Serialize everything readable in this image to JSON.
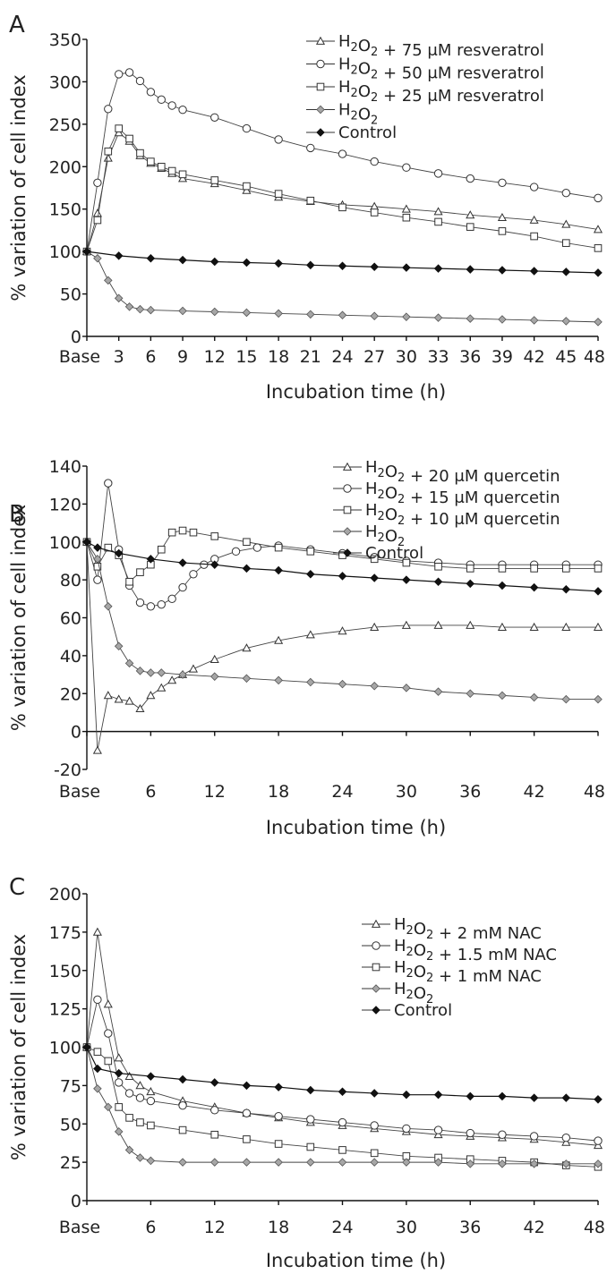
{
  "chart_data": [
    {
      "panel": "A",
      "type": "line",
      "xlabel": "Incubation time (h)",
      "ylabel": "% variation of cell index",
      "ylim": [
        0,
        350
      ],
      "yticks": [
        "0",
        "50",
        "100",
        "150",
        "200",
        "250",
        "300",
        "350"
      ],
      "xlim": [
        0,
        48
      ],
      "xticks": [
        "Base",
        "3",
        "6",
        "9",
        "12",
        "15",
        "18",
        "21",
        "24",
        "27",
        "30",
        "33",
        "36",
        "39",
        "42",
        "45",
        "48"
      ],
      "legend_position": "top-right",
      "series": [
        {
          "name": "H₂O₂ + 75 μM resveratrol",
          "marker": "triangle",
          "x": [
            0,
            1,
            2,
            3,
            4,
            5,
            6,
            7,
            8,
            9,
            12,
            15,
            18,
            21,
            24,
            27,
            30,
            33,
            36,
            39,
            42,
            45,
            48
          ],
          "y": [
            100,
            145,
            210,
            240,
            230,
            213,
            204,
            198,
            192,
            186,
            180,
            172,
            164,
            159,
            155,
            153,
            150,
            147,
            143,
            140,
            137,
            132,
            126
          ]
        },
        {
          "name": "H₂O₂ + 50 μM resveratrol",
          "marker": "circle",
          "x": [
            0,
            1,
            2,
            3,
            4,
            5,
            6,
            7,
            8,
            9,
            12,
            15,
            18,
            21,
            24,
            27,
            30,
            33,
            36,
            39,
            42,
            45,
            48
          ],
          "y": [
            100,
            181,
            268,
            309,
            311,
            301,
            288,
            279,
            272,
            267,
            258,
            245,
            232,
            222,
            215,
            206,
            199,
            192,
            186,
            181,
            176,
            169,
            163
          ]
        },
        {
          "name": "H₂O₂ + 25 μM resveratrol",
          "marker": "square",
          "x": [
            0,
            1,
            2,
            3,
            4,
            5,
            6,
            7,
            8,
            9,
            12,
            15,
            18,
            21,
            24,
            27,
            30,
            33,
            36,
            39,
            42,
            45,
            48
          ],
          "y": [
            100,
            137,
            218,
            245,
            233,
            216,
            206,
            200,
            195,
            191,
            184,
            177,
            168,
            160,
            152,
            146,
            140,
            135,
            129,
            124,
            118,
            110,
            104
          ]
        },
        {
          "name": "H₂O₂",
          "marker": "diamond",
          "x": [
            0,
            1,
            2,
            3,
            4,
            5,
            6,
            9,
            12,
            15,
            18,
            21,
            24,
            27,
            30,
            33,
            36,
            39,
            42,
            45,
            48
          ],
          "y": [
            100,
            92,
            66,
            45,
            35,
            32,
            31,
            30,
            29,
            28,
            27,
            26,
            25,
            24,
            23,
            22,
            21,
            20,
            19,
            18,
            17
          ]
        },
        {
          "name": "Control",
          "marker": "filled-diamond",
          "x": [
            0,
            3,
            6,
            9,
            12,
            15,
            18,
            21,
            24,
            27,
            30,
            33,
            36,
            39,
            42,
            45,
            48
          ],
          "y": [
            100,
            95,
            92,
            90,
            88,
            87,
            86,
            84,
            83,
            82,
            81,
            80,
            79,
            78,
            77,
            76,
            75
          ]
        }
      ]
    },
    {
      "panel": "B",
      "type": "line",
      "xlabel": "Incubation time (h)",
      "ylabel": "% variation of cell index",
      "ylim": [
        -20,
        140
      ],
      "yticks": [
        "-20",
        "0",
        "20",
        "40",
        "60",
        "80",
        "100",
        "120",
        "140"
      ],
      "xlim": [
        0,
        48
      ],
      "xticks": [
        "Base",
        "6",
        "12",
        "18",
        "24",
        "30",
        "36",
        "42",
        "48"
      ],
      "legend_position": "top-right",
      "series": [
        {
          "name": "H₂O₂ + 20 μM quercetin",
          "marker": "triangle",
          "x": [
            0,
            1,
            2,
            3,
            4,
            5,
            6,
            7,
            8,
            9,
            10,
            12,
            15,
            18,
            21,
            24,
            27,
            30,
            33,
            36,
            39,
            42,
            45,
            48
          ],
          "y": [
            100,
            -10,
            19,
            17,
            16,
            12,
            19,
            23,
            27,
            30,
            33,
            38,
            44,
            48,
            51,
            53,
            55,
            56,
            56,
            56,
            55,
            55,
            55,
            55
          ]
        },
        {
          "name": "H₂O₂ + 15 μM quercetin",
          "marker": "circle",
          "x": [
            0,
            1,
            2,
            3,
            4,
            5,
            6,
            7,
            8,
            9,
            10,
            11,
            12,
            14,
            16,
            18,
            21,
            24,
            27,
            30,
            33,
            36,
            39,
            42,
            45,
            48
          ],
          "y": [
            100,
            80,
            131,
            96,
            77,
            68,
            66,
            67,
            70,
            76,
            83,
            88,
            91,
            95,
            97,
            98,
            96,
            94,
            92,
            90,
            89,
            88,
            88,
            88,
            88,
            88
          ]
        },
        {
          "name": "H₂O₂ + 10 μM quercetin",
          "marker": "square",
          "x": [
            0,
            1,
            2,
            3,
            4,
            5,
            6,
            7,
            8,
            9,
            10,
            12,
            15,
            18,
            21,
            24,
            27,
            30,
            33,
            36,
            39,
            42,
            45,
            48
          ],
          "y": [
            100,
            87,
            97,
            93,
            79,
            84,
            88,
            96,
            105,
            106,
            105,
            103,
            100,
            97,
            95,
            93,
            91,
            89,
            87,
            86,
            86,
            86,
            86,
            86
          ]
        },
        {
          "name": "H₂O₂",
          "marker": "diamond",
          "x": [
            0,
            1,
            2,
            3,
            4,
            5,
            6,
            7,
            9,
            12,
            15,
            18,
            21,
            24,
            27,
            30,
            33,
            36,
            39,
            42,
            45,
            48
          ],
          "y": [
            100,
            91,
            66,
            45,
            36,
            32,
            31,
            31,
            30,
            29,
            28,
            27,
            26,
            25,
            24,
            23,
            21,
            20,
            19,
            18,
            17,
            17
          ]
        },
        {
          "name": "Control",
          "marker": "filled-diamond",
          "x": [
            0,
            1,
            3,
            6,
            9,
            12,
            15,
            18,
            21,
            24,
            27,
            30,
            33,
            36,
            39,
            42,
            45,
            48
          ],
          "y": [
            100,
            97,
            94,
            91,
            89,
            88,
            86,
            85,
            83,
            82,
            81,
            80,
            79,
            78,
            77,
            76,
            75,
            74
          ]
        }
      ]
    },
    {
      "panel": "C",
      "type": "line",
      "xlabel": "Incubation time (h)",
      "ylabel": "% variation of cell index",
      "ylim": [
        0,
        200
      ],
      "yticks": [
        "0",
        "25",
        "50",
        "75",
        "100",
        "125",
        "150",
        "175",
        "200"
      ],
      "xlim": [
        0,
        48
      ],
      "xticks": [
        "Base",
        "6",
        "12",
        "18",
        "24",
        "30",
        "36",
        "42",
        "48"
      ],
      "legend_position": "top-right",
      "series": [
        {
          "name": "H₂O₂ + 2 mM NAC",
          "marker": "triangle",
          "x": [
            0,
            1,
            2,
            3,
            4,
            5,
            6,
            9,
            12,
            15,
            18,
            21,
            24,
            27,
            30,
            33,
            36,
            39,
            42,
            45,
            48
          ],
          "y": [
            100,
            175,
            128,
            93,
            81,
            75,
            71,
            65,
            61,
            57,
            54,
            51,
            49,
            47,
            45,
            43,
            42,
            41,
            40,
            38,
            36
          ]
        },
        {
          "name": "H₂O₂ + 1.5 mM NAC",
          "marker": "circle",
          "x": [
            0,
            1,
            2,
            3,
            4,
            5,
            6,
            9,
            12,
            15,
            18,
            21,
            24,
            27,
            30,
            33,
            36,
            39,
            42,
            45,
            48
          ],
          "y": [
            100,
            131,
            109,
            77,
            70,
            67,
            65,
            62,
            59,
            57,
            55,
            53,
            51,
            49,
            47,
            46,
            44,
            43,
            42,
            41,
            39
          ]
        },
        {
          "name": "H₂O₂ + 1 mM NAC",
          "marker": "square",
          "x": [
            0,
            1,
            2,
            3,
            4,
            5,
            6,
            9,
            12,
            15,
            18,
            21,
            24,
            27,
            30,
            33,
            36,
            39,
            42,
            45,
            48
          ],
          "y": [
            100,
            97,
            91,
            61,
            54,
            51,
            49,
            46,
            43,
            40,
            37,
            35,
            33,
            31,
            29,
            28,
            27,
            26,
            25,
            23,
            22
          ]
        },
        {
          "name": "H₂O₂",
          "marker": "diamond",
          "x": [
            0,
            1,
            2,
            3,
            4,
            5,
            6,
            9,
            12,
            15,
            18,
            21,
            24,
            27,
            30,
            33,
            36,
            39,
            42,
            45,
            48
          ],
          "y": [
            100,
            73,
            61,
            45,
            33,
            28,
            26,
            25,
            25,
            25,
            25,
            25,
            25,
            25,
            25,
            25,
            24,
            24,
            24,
            24,
            24
          ]
        },
        {
          "name": "Control",
          "marker": "filled-diamond",
          "x": [
            0,
            1,
            3,
            6,
            9,
            12,
            15,
            18,
            21,
            24,
            27,
            30,
            33,
            36,
            39,
            42,
            45,
            48
          ],
          "y": [
            100,
            86,
            83,
            81,
            79,
            77,
            75,
            74,
            72,
            71,
            70,
            69,
            69,
            68,
            68,
            67,
            67,
            66
          ]
        }
      ]
    }
  ]
}
